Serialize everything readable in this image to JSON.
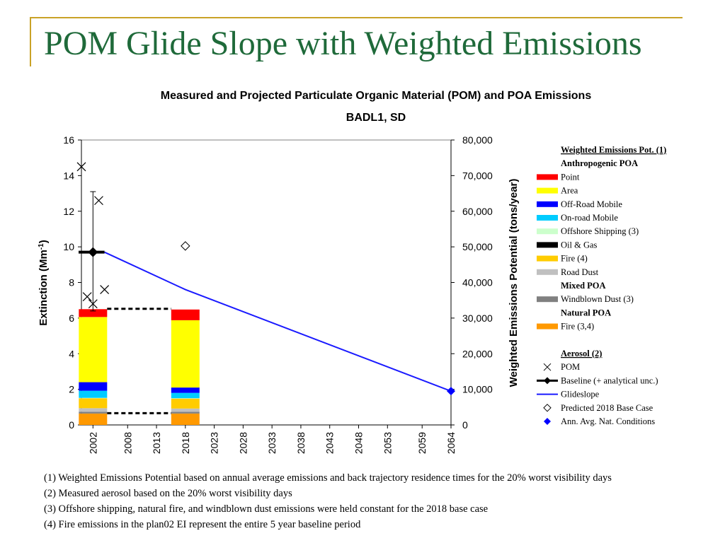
{
  "slide": {
    "title": "POM Glide Slope with Weighted Emissions",
    "footnotes": [
      "(1) Weighted Emissions Potential based on annual average emissions and back trajectory residence times for the 20% worst visibility days",
      "(2) Measured aerosol based on the 20% worst visibility days",
      "(3) Offshore shipping, natural fire, and windblown dust emissions were held constant for the 2018 base case",
      "(4) Fire emissions in the plan02 EI represent the entire 5 year baseline period"
    ]
  },
  "chart_data": {
    "type": "bar+line",
    "title": "Measured and Projected Particulate Organic Material (POM) and POA Emissions",
    "subtitle": "BADL1, SD",
    "ylabel_left": "Extinction (Mm-1)",
    "ylabel_right": "Weighted Emissions Potential (tons/year)",
    "ylim_left": [
      0,
      16
    ],
    "ylim_right": [
      0,
      80000
    ],
    "yticks_left": [
      "0",
      "2",
      "4",
      "6",
      "8",
      "10",
      "12",
      "14",
      "16"
    ],
    "yticks_right": [
      "0",
      "10,000",
      "20,000",
      "30,000",
      "40,000",
      "50,000",
      "60,000",
      "70,000",
      "80,000"
    ],
    "xlim": [
      2000,
      2064
    ],
    "xticks": [
      2002,
      2008,
      2013,
      2018,
      2023,
      2028,
      2033,
      2038,
      2043,
      2048,
      2053,
      2059,
      2064
    ],
    "legend": {
      "header": "Weighted Emissions Pot. (1)",
      "groups": [
        {
          "label": "Anthropogenic POA",
          "items": [
            {
              "name": "Point",
              "color": "#ff0000",
              "swatch": "bar"
            },
            {
              "name": "Area",
              "color": "#ffff00",
              "swatch": "bar"
            },
            {
              "name": "Off-Road Mobile",
              "color": "#0000ff",
              "swatch": "bar"
            },
            {
              "name": "On-road Mobile",
              "color": "#00ccff",
              "swatch": "bar"
            },
            {
              "name": "Offshore Shipping (3)",
              "color": "#ccffcc",
              "swatch": "bar"
            },
            {
              "name": "Oil & Gas",
              "color": "#000000",
              "swatch": "bar"
            },
            {
              "name": "Fire (4)",
              "color": "#ffcc00",
              "swatch": "bar"
            },
            {
              "name": "Road Dust",
              "color": "#c0c0c0",
              "swatch": "bar"
            }
          ]
        },
        {
          "label": "Mixed POA",
          "items": [
            {
              "name": "Windblown Dust (3)",
              "color": "#808080",
              "swatch": "bar"
            }
          ]
        },
        {
          "label": "Natural POA",
          "items": [
            {
              "name": "Fire (3,4)",
              "color": "#ff9900",
              "swatch": "bar"
            }
          ]
        }
      ],
      "header2": "Aerosol (2)",
      "items2": [
        {
          "name": "POM",
          "swatch": "x"
        },
        {
          "name": "Baseline (+ analytical unc.)",
          "swatch": "baseline"
        },
        {
          "name": "Glideslope",
          "swatch": "line",
          "color": "#1a1aff"
        },
        {
          "name": "Predicted 2018 Base Case",
          "swatch": "diamond-open"
        },
        {
          "name": "Ann. Avg. Nat. Conditions",
          "swatch": "diamond-filled",
          "color": "#0000ff"
        }
      ]
    },
    "stacked_bars": [
      {
        "year": 2002,
        "segments": [
          {
            "name": "Fire (3,4)",
            "value": 3200,
            "color": "#ff9900"
          },
          {
            "name": "Windblown Dust (3)",
            "value": 500,
            "color": "#808080"
          },
          {
            "name": "Road Dust",
            "value": 1000,
            "color": "#c0c0c0"
          },
          {
            "name": "Fire (4)",
            "value": 2800,
            "color": "#ffcc00"
          },
          {
            "name": "Oil & Gas",
            "value": 0,
            "color": "#000000"
          },
          {
            "name": "Offshore Shipping (3)",
            "value": 100,
            "color": "#ccffcc"
          },
          {
            "name": "On-road Mobile",
            "value": 2000,
            "color": "#00ccff"
          },
          {
            "name": "Off-Road Mobile",
            "value": 2400,
            "color": "#0000ff"
          },
          {
            "name": "Area",
            "value": 18300,
            "color": "#ffff00"
          },
          {
            "name": "Point",
            "value": 2200,
            "color": "#ff0000"
          }
        ]
      },
      {
        "year": 2018,
        "segments": [
          {
            "name": "Fire (3,4)",
            "value": 3200,
            "color": "#ff9900"
          },
          {
            "name": "Windblown Dust (3)",
            "value": 500,
            "color": "#808080"
          },
          {
            "name": "Road Dust",
            "value": 900,
            "color": "#c0c0c0"
          },
          {
            "name": "Fire (4)",
            "value": 2800,
            "color": "#ffcc00"
          },
          {
            "name": "Oil & Gas",
            "value": 0,
            "color": "#000000"
          },
          {
            "name": "Offshore Shipping (3)",
            "value": 100,
            "color": "#ccffcc"
          },
          {
            "name": "On-road Mobile",
            "value": 1500,
            "color": "#00ccff"
          },
          {
            "name": "Off-Road Mobile",
            "value": 1500,
            "color": "#0000ff"
          },
          {
            "name": "Area",
            "value": 18900,
            "color": "#ffff00"
          },
          {
            "name": "Point",
            "value": 3000,
            "color": "#ff0000"
          }
        ]
      }
    ],
    "dashed_connectors": [
      {
        "from_year": 2002,
        "to_year": 2018,
        "value": 32600
      },
      {
        "from_year": 2002,
        "to_year": 2018,
        "value": 3300
      }
    ],
    "pom": [
      {
        "year": 2000,
        "value": 14.5
      },
      {
        "year": 2001,
        "value": 7.2
      },
      {
        "year": 2002,
        "value": 6.8
      },
      {
        "year": 2003,
        "value": 12.6
      },
      {
        "year": 2004,
        "value": 7.6
      }
    ],
    "baseline": {
      "year": 2002,
      "value": 9.7,
      "error_low": 6.4,
      "error_high": 13.1,
      "extent": [
        2000,
        2004
      ]
    },
    "glideslope": {
      "points": [
        [
          2004,
          9.7
        ],
        [
          2018,
          7.6
        ],
        [
          2064,
          1.9
        ]
      ]
    },
    "predicted_2018": {
      "year": 2018,
      "value": 10.05
    },
    "natural_conditions": {
      "year": 2064,
      "value": 1.9
    }
  }
}
